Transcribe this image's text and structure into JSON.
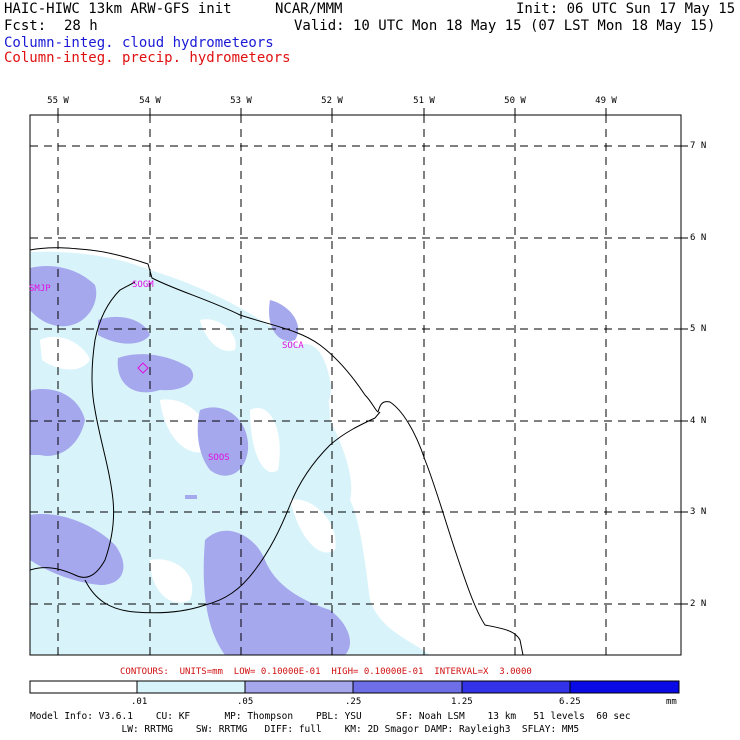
{
  "header": {
    "model": "HAIC-HIWC 13km ARW-GFS init",
    "org": "NCAR/MMM",
    "init": "Init: 06 UTC Sun 17 May 15",
    "fcst_label": "Fcst:",
    "fcst_value": "28 h",
    "valid": "Valid: 10 UTC Mon 18 May 15 (07 LST Mon 18 May 15)",
    "field1": "Column-integ. cloud hydrometeors",
    "field2": "Column-integ. precip. hydrometeors"
  },
  "colors": {
    "cloud_label": "#1a1ad6",
    "precip_label": "#e01010",
    "level1": "#d8f4fa",
    "level2": "#a6a8ee",
    "level3": "#6e6ee6",
    "level4": "#3232e8",
    "level5": "#0a0ae6",
    "station": "#e010e0",
    "contour_info": "#d01010"
  },
  "lon_labels": [
    "55 W",
    "54 W",
    "53 W",
    "52 W",
    "51 W",
    "50 W",
    "49 W"
  ],
  "lat_labels": [
    "7 N",
    "6 N",
    "5 N",
    "4 N",
    "3 N",
    "2 N"
  ],
  "stations": [
    "SMJP",
    "SOGM",
    "SOCA",
    "SOOS"
  ],
  "contour_info": "CONTOURS:  UNITS=mm  LOW= 0.10000E-01  HIGH= 0.10000E-01  INTERVAL=X  3.0000",
  "colorbar": {
    "ticks": [
      ".01",
      ".05",
      ".25",
      "1.25",
      "6.25"
    ],
    "units": "mm"
  },
  "footer": {
    "line1": "Model Info: V3.6.1    CU: KF      MP: Thompson    PBL: YSU      SF: Noah LSM    13 km   51 levels  60 sec",
    "line2": "                LW: RRTMG    SW: RRTMG   DIFF: full    KM: 2D Smagor DAMP: Rayleigh3  SFLAY: MM5"
  }
}
